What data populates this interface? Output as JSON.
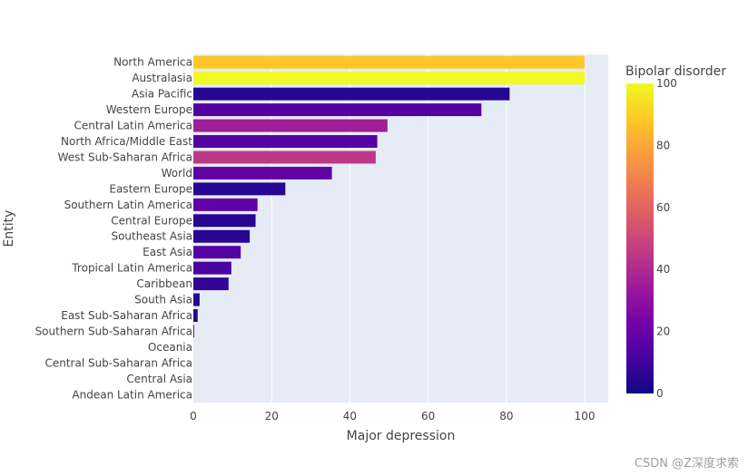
{
  "chart_data": {
    "type": "bar",
    "orientation": "horizontal",
    "xlabel": "Major depression",
    "ylabel": "Entity",
    "xlim": [
      0,
      106
    ],
    "xticks": [
      0,
      20,
      40,
      60,
      80,
      100
    ],
    "grid": true,
    "colorbar": {
      "title": "Bipolar disorder",
      "range": [
        0,
        100
      ],
      "ticks": [
        0,
        20,
        40,
        60,
        80,
        100
      ]
    },
    "categories": [
      "North America",
      "Australasia",
      "Asia Pacific",
      "Western Europe",
      "Central Latin America",
      "North Africa/Middle East",
      "West Sub-Saharan Africa",
      "World",
      "Eastern Europe",
      "Southern Latin America",
      "Central Europe",
      "Southeast Asia",
      "East Asia",
      "Tropical Latin America",
      "Caribbean",
      "South Asia",
      "East Sub-Saharan Africa",
      "Southern Sub-Saharan Africa",
      "Oceania",
      "Central Sub-Saharan Africa",
      "Central Asia",
      "Andean Latin America"
    ],
    "values": [
      100,
      100,
      80.8,
      73.6,
      49.6,
      47,
      46.6,
      35.4,
      23.5,
      16.4,
      15.9,
      14.4,
      12.1,
      9.7,
      9,
      1.6,
      1.1,
      0.2,
      0,
      0,
      0,
      0
    ],
    "color_values": [
      88,
      100,
      5,
      15,
      35,
      15,
      45,
      18,
      5,
      18,
      5,
      5,
      15,
      12,
      7,
      5,
      5,
      5,
      5,
      5,
      5,
      5
    ]
  },
  "watermark": "CSDN @Z深度求索"
}
